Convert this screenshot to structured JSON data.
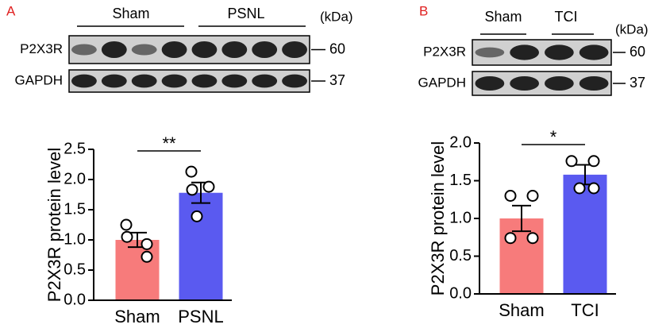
{
  "blots": [
    {
      "panel": "A",
      "groups": [
        "Sham",
        "PSNL"
      ],
      "unit": "(kDa)",
      "rows": [
        {
          "label": "P2X3R",
          "marker": 60
        },
        {
          "label": "GAPDH",
          "marker": 37
        }
      ]
    },
    {
      "panel": "B",
      "groups": [
        "Sham",
        "TCI"
      ],
      "unit": "(kDa)",
      "rows": [
        {
          "label": "P2X3R",
          "marker": 60
        },
        {
          "label": "GAPDH",
          "marker": 37
        }
      ]
    }
  ],
  "chart_data": [
    {
      "type": "bar",
      "ylabel": "P2X3R protein level",
      "categories": [
        "Sham",
        "PSNL"
      ],
      "values": [
        1.0,
        1.78
      ],
      "errors": [
        0.12,
        0.17
      ],
      "colors": [
        "#f77b7b",
        "#5a5af0"
      ],
      "points": [
        [
          1.25,
          1.05,
          0.93,
          0.72
        ],
        [
          2.13,
          1.88,
          1.83,
          1.39
        ]
      ],
      "significance": "**",
      "ylim": [
        0,
        2.5
      ],
      "yticks": [
        {
          "value": 0,
          "label": "0.0"
        },
        0.5,
        {
          "value": 1,
          "label": "1.0"
        },
        1.5,
        {
          "value": 2,
          "label": "2.0"
        },
        2.5
      ]
    },
    {
      "type": "bar",
      "ylabel": "P2X3R protein level",
      "categories": [
        "Sham",
        "TCI"
      ],
      "values": [
        1.0,
        1.58
      ],
      "errors": [
        0.17,
        0.13
      ],
      "colors": [
        "#f77b7b",
        "#5a5af0"
      ],
      "points": [
        [
          1.3,
          1.3,
          0.74,
          0.74
        ],
        [
          1.76,
          1.76,
          1.4,
          1.4
        ]
      ],
      "significance": "*",
      "ylim": [
        0,
        2
      ],
      "yticks": [
        {
          "value": 0,
          "label": "0.0"
        },
        0.5,
        {
          "value": 1,
          "label": "1.0"
        },
        1.5,
        {
          "value": 2,
          "label": "2.0"
        }
      ]
    }
  ]
}
